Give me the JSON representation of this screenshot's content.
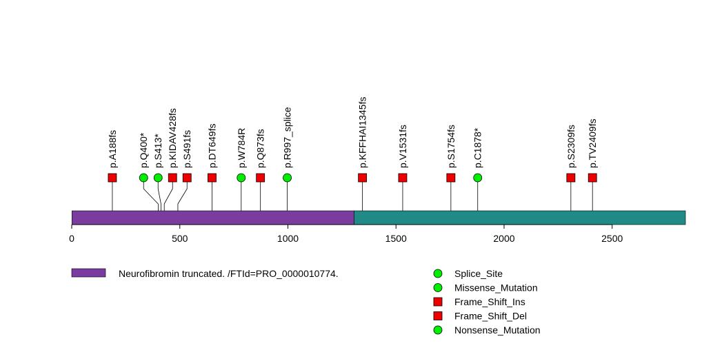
{
  "chart_data": {
    "type": "lollipop",
    "protein_length": 2839,
    "xlim": [
      0,
      2839
    ],
    "axis_ticks": [
      0,
      500,
      1000,
      1500,
      2000,
      2500
    ],
    "axis_tick_labels": [
      "0",
      "500",
      "1000",
      "1500",
      "2000",
      "2500"
    ],
    "domains": [
      {
        "start": 1,
        "end": 1306,
        "color": "#7b3c9f",
        "label": "Neurofibromin truncated. /FTId=PRO_0000010774."
      },
      {
        "start": 1306,
        "end": 2839,
        "color": "#1f8a86",
        "label": ""
      }
    ],
    "mutations": [
      {
        "label": "p.A188fs",
        "position": 188,
        "type": "Frame_Shift",
        "shape": "square"
      },
      {
        "label": "p.Q400*",
        "position": 400,
        "type": "Nonsense_Mutation",
        "shape": "circle"
      },
      {
        "label": "p.S413*",
        "position": 413,
        "type": "Nonsense_Mutation",
        "shape": "circle"
      },
      {
        "label": "p.KIDAV428fs",
        "position": 428,
        "type": "Frame_Shift",
        "shape": "square"
      },
      {
        "label": "p.S491fs",
        "position": 491,
        "type": "Frame_Shift",
        "shape": "square"
      },
      {
        "label": "p.DT649fs",
        "position": 649,
        "type": "Frame_Shift",
        "shape": "square"
      },
      {
        "label": "p.W784R",
        "position": 784,
        "type": "Missense_Mutation",
        "shape": "circle"
      },
      {
        "label": "p.Q873fs",
        "position": 873,
        "type": "Frame_Shift",
        "shape": "square"
      },
      {
        "label": "p.R997_splice",
        "position": 997,
        "type": "Splice_Site",
        "shape": "circle"
      },
      {
        "label": "p.KFFHAI1345fs",
        "position": 1345,
        "type": "Frame_Shift",
        "shape": "square"
      },
      {
        "label": "p.V1531fs",
        "position": 1531,
        "type": "Frame_Shift",
        "shape": "square"
      },
      {
        "label": "p.S1754fs",
        "position": 1754,
        "type": "Frame_Shift",
        "shape": "square"
      },
      {
        "label": "p.C1878*",
        "position": 1878,
        "type": "Nonsense_Mutation",
        "shape": "circle"
      },
      {
        "label": "p.S2309fs",
        "position": 2309,
        "type": "Frame_Shift",
        "shape": "square"
      },
      {
        "label": "p.TV2409fs",
        "position": 2409,
        "type": "Frame_Shift",
        "shape": "square"
      }
    ],
    "legend": [
      {
        "label": "Splice_Site",
        "shape": "circle",
        "color": "#00ee00"
      },
      {
        "label": "Missense_Mutation",
        "shape": "circle",
        "color": "#00ee00"
      },
      {
        "label": "Frame_Shift_Ins",
        "shape": "square",
        "color": "#ee0000"
      },
      {
        "label": "Frame_Shift_Del",
        "shape": "square",
        "color": "#ee0000"
      },
      {
        "label": "Nonsense_Mutation",
        "shape": "circle",
        "color": "#00ee00"
      }
    ],
    "colors": {
      "circle": "#00ee00",
      "square": "#ee0000",
      "line": "#000000"
    }
  }
}
